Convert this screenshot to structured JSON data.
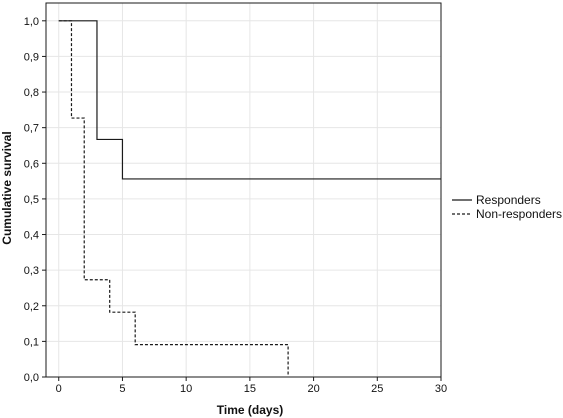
{
  "chart_data": {
    "type": "line",
    "subtype": "step",
    "title": "",
    "xlabel": "Time (days)",
    "ylabel": "Cumulative survival",
    "xlim": [
      -1,
      30
    ],
    "ylim": [
      0,
      1.05
    ],
    "grid": true,
    "legend_position": "right",
    "x_ticks": [
      {
        "value": 0,
        "label": "0"
      },
      {
        "value": 5,
        "label": "5"
      },
      {
        "value": 10,
        "label": "10"
      },
      {
        "value": 15,
        "label": "15"
      },
      {
        "value": 20,
        "label": "20"
      },
      {
        "value": 25,
        "label": "25"
      },
      {
        "value": 30,
        "label": "30"
      }
    ],
    "y_ticks": [
      {
        "value": 0.0,
        "label": "0,0"
      },
      {
        "value": 0.1,
        "label": "0,1"
      },
      {
        "value": 0.2,
        "label": "0,2"
      },
      {
        "value": 0.3,
        "label": "0,3"
      },
      {
        "value": 0.4,
        "label": "0,4"
      },
      {
        "value": 0.5,
        "label": "0,5"
      },
      {
        "value": 0.6,
        "label": "0,6"
      },
      {
        "value": 0.7,
        "label": "0,7"
      },
      {
        "value": 0.8,
        "label": "0,8"
      },
      {
        "value": 0.9,
        "label": "0,9"
      },
      {
        "value": 1.0,
        "label": "1,0"
      }
    ],
    "series": [
      {
        "name": "Responders",
        "style": "solid",
        "color": "#1a1a1a",
        "x": [
          0,
          3,
          3,
          5,
          5,
          30
        ],
        "y": [
          1.0,
          1.0,
          0.667,
          0.667,
          0.556,
          0.556
        ]
      },
      {
        "name": "Non-responders",
        "style": "dashed",
        "color": "#1a1a1a",
        "x": [
          0,
          1,
          1,
          2,
          2,
          4,
          4,
          6,
          6,
          18,
          18
        ],
        "y": [
          1.0,
          1.0,
          0.727,
          0.727,
          0.273,
          0.273,
          0.182,
          0.182,
          0.091,
          0.091,
          0.0
        ]
      }
    ]
  }
}
